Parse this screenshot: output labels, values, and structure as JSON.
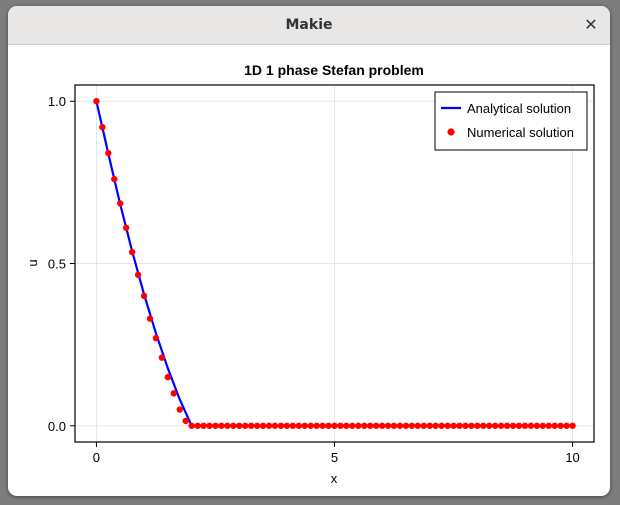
{
  "window": {
    "title": "Makie",
    "close_icon": "close-icon"
  },
  "chart_data": {
    "type": "line",
    "title": "1D 1 phase Stefan problem",
    "xlabel": "x",
    "ylabel": "u",
    "xlim": [
      -0.45,
      10.45
    ],
    "ylim": [
      -0.05,
      1.05
    ],
    "xticks": [
      0,
      5,
      10
    ],
    "xtick_labels": [
      "0",
      "5",
      "10"
    ],
    "yticks": [
      0.0,
      0.5,
      1.0
    ],
    "ytick_labels": [
      "0.0",
      "0.5",
      "1.0"
    ],
    "grid": true,
    "legend_position": "top-right",
    "series": [
      {
        "name": "Analytical solution",
        "style": "line",
        "color": "#0000ff",
        "x": [
          0,
          0.25,
          0.5,
          0.75,
          1.0,
          1.25,
          1.5,
          1.75,
          2.0,
          10
        ],
        "y": [
          1.0,
          0.838,
          0.682,
          0.538,
          0.405,
          0.285,
          0.177,
          0.081,
          0.0,
          0.0
        ]
      },
      {
        "name": "Numerical solution",
        "style": "scatter",
        "color": "#ff0000",
        "x": [
          0,
          0.125,
          0.25,
          0.375,
          0.5,
          0.625,
          0.75,
          0.875,
          1.0,
          1.125,
          1.25,
          1.375,
          1.5,
          1.625,
          1.75,
          1.875,
          2.0,
          2.125,
          2.25,
          2.375,
          2.5,
          2.625,
          2.75,
          2.875,
          3.0,
          3.125,
          3.25,
          3.375,
          3.5,
          3.625,
          3.75,
          3.875,
          4.0,
          4.125,
          4.25,
          4.375,
          4.5,
          4.625,
          4.75,
          4.875,
          5.0,
          5.125,
          5.25,
          5.375,
          5.5,
          5.625,
          5.75,
          5.875,
          6.0,
          6.125,
          6.25,
          6.375,
          6.5,
          6.625,
          6.75,
          6.875,
          7.0,
          7.125,
          7.25,
          7.375,
          7.5,
          7.625,
          7.75,
          7.875,
          8.0,
          8.125,
          8.25,
          8.375,
          8.5,
          8.625,
          8.75,
          8.875,
          9.0,
          9.125,
          9.25,
          9.375,
          9.5,
          9.625,
          9.75,
          9.875,
          10.0
        ],
        "y": [
          1.0,
          0.92,
          0.84,
          0.76,
          0.685,
          0.61,
          0.535,
          0.465,
          0.4,
          0.33,
          0.27,
          0.21,
          0.15,
          0.1,
          0.05,
          0.015,
          0.0,
          0.0,
          0.0,
          0.0,
          0.0,
          0.0,
          0.0,
          0.0,
          0.0,
          0.0,
          0.0,
          0.0,
          0.0,
          0.0,
          0.0,
          0.0,
          0.0,
          0.0,
          0.0,
          0.0,
          0.0,
          0.0,
          0.0,
          0.0,
          0.0,
          0.0,
          0.0,
          0.0,
          0.0,
          0.0,
          0.0,
          0.0,
          0.0,
          0.0,
          0.0,
          0.0,
          0.0,
          0.0,
          0.0,
          0.0,
          0.0,
          0.0,
          0.0,
          0.0,
          0.0,
          0.0,
          0.0,
          0.0,
          0.0,
          0.0,
          0.0,
          0.0,
          0.0,
          0.0,
          0.0,
          0.0,
          0.0,
          0.0,
          0.0,
          0.0,
          0.0,
          0.0,
          0.0,
          0.0,
          0.0
        ]
      }
    ]
  }
}
